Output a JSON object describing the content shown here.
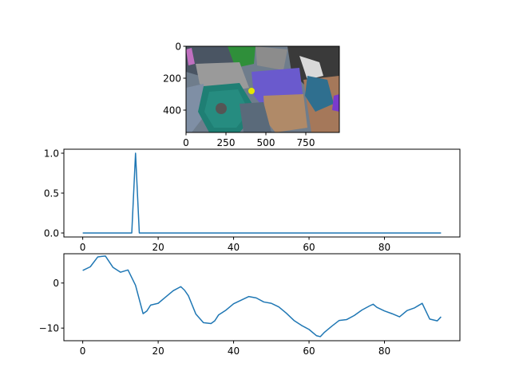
{
  "chart_data": [
    {
      "type": "image",
      "title": "",
      "xlabel": "",
      "ylabel": "",
      "xlim": [
        0,
        960
      ],
      "ylim": [
        540,
        0
      ],
      "xticks": [
        0,
        250,
        500,
        750
      ],
      "yticks": [
        0,
        200,
        400
      ],
      "marker": {
        "x": 410,
        "y": 280,
        "color": "#e6e600"
      },
      "colors": {
        "background": "#6b7a8f",
        "teal_box": "#1f7f74",
        "purple": "#6a5acd",
        "tan": "#b08a68"
      }
    },
    {
      "type": "line",
      "title": "",
      "xlabel": "",
      "ylabel": "",
      "xlim": [
        -5,
        100
      ],
      "ylim": [
        -0.05,
        1.05
      ],
      "xticks": [
        0,
        20,
        40,
        60,
        80
      ],
      "yticks": [
        0.0,
        0.5,
        1.0
      ],
      "ytick_labels": [
        "0.0",
        "0.5",
        "1.0"
      ],
      "x": [
        0,
        13,
        14,
        15,
        95
      ],
      "y": [
        0,
        0,
        1,
        0,
        0
      ],
      "color": "#1f77b4"
    },
    {
      "type": "line",
      "title": "",
      "xlabel": "",
      "ylabel": "",
      "xlim": [
        -5,
        100
      ],
      "ylim": [
        -12.8,
        6.5
      ],
      "xticks": [
        0,
        20,
        40,
        60,
        80
      ],
      "yticks": [
        0,
        -10
      ],
      "ytick_labels": [
        "0",
        "−10"
      ],
      "x": [
        0,
        2,
        4,
        6,
        8,
        10,
        12,
        14,
        16,
        17,
        18,
        20,
        22,
        24,
        26,
        27,
        28,
        30,
        32,
        34,
        35,
        36,
        38,
        40,
        42,
        44,
        46,
        48,
        50,
        52,
        54,
        56,
        58,
        60,
        62,
        63,
        64,
        66,
        68,
        70,
        72,
        74,
        76,
        77,
        78,
        80,
        82,
        84,
        86,
        88,
        89,
        90,
        92,
        94,
        95
      ],
      "y": [
        2.8,
        3.6,
        5.8,
        6.0,
        3.5,
        2.4,
        2.9,
        -0.5,
        -6.8,
        -6.2,
        -4.9,
        -4.5,
        -3.1,
        -1.7,
        -0.8,
        -1.6,
        -2.8,
        -6.9,
        -8.8,
        -9.0,
        -8.4,
        -7.1,
        -6.0,
        -4.6,
        -3.8,
        -3.0,
        -3.3,
        -4.2,
        -4.5,
        -5.3,
        -6.7,
        -8.3,
        -9.4,
        -10.3,
        -11.7,
        -11.9,
        -11.0,
        -9.6,
        -8.3,
        -8.1,
        -7.2,
        -6.0,
        -5.1,
        -4.7,
        -5.4,
        -6.2,
        -6.8,
        -7.5,
        -6.1,
        -5.5,
        -5.0,
        -4.5,
        -8.0,
        -8.4,
        -7.5
      ],
      "color": "#1f77b4"
    }
  ]
}
